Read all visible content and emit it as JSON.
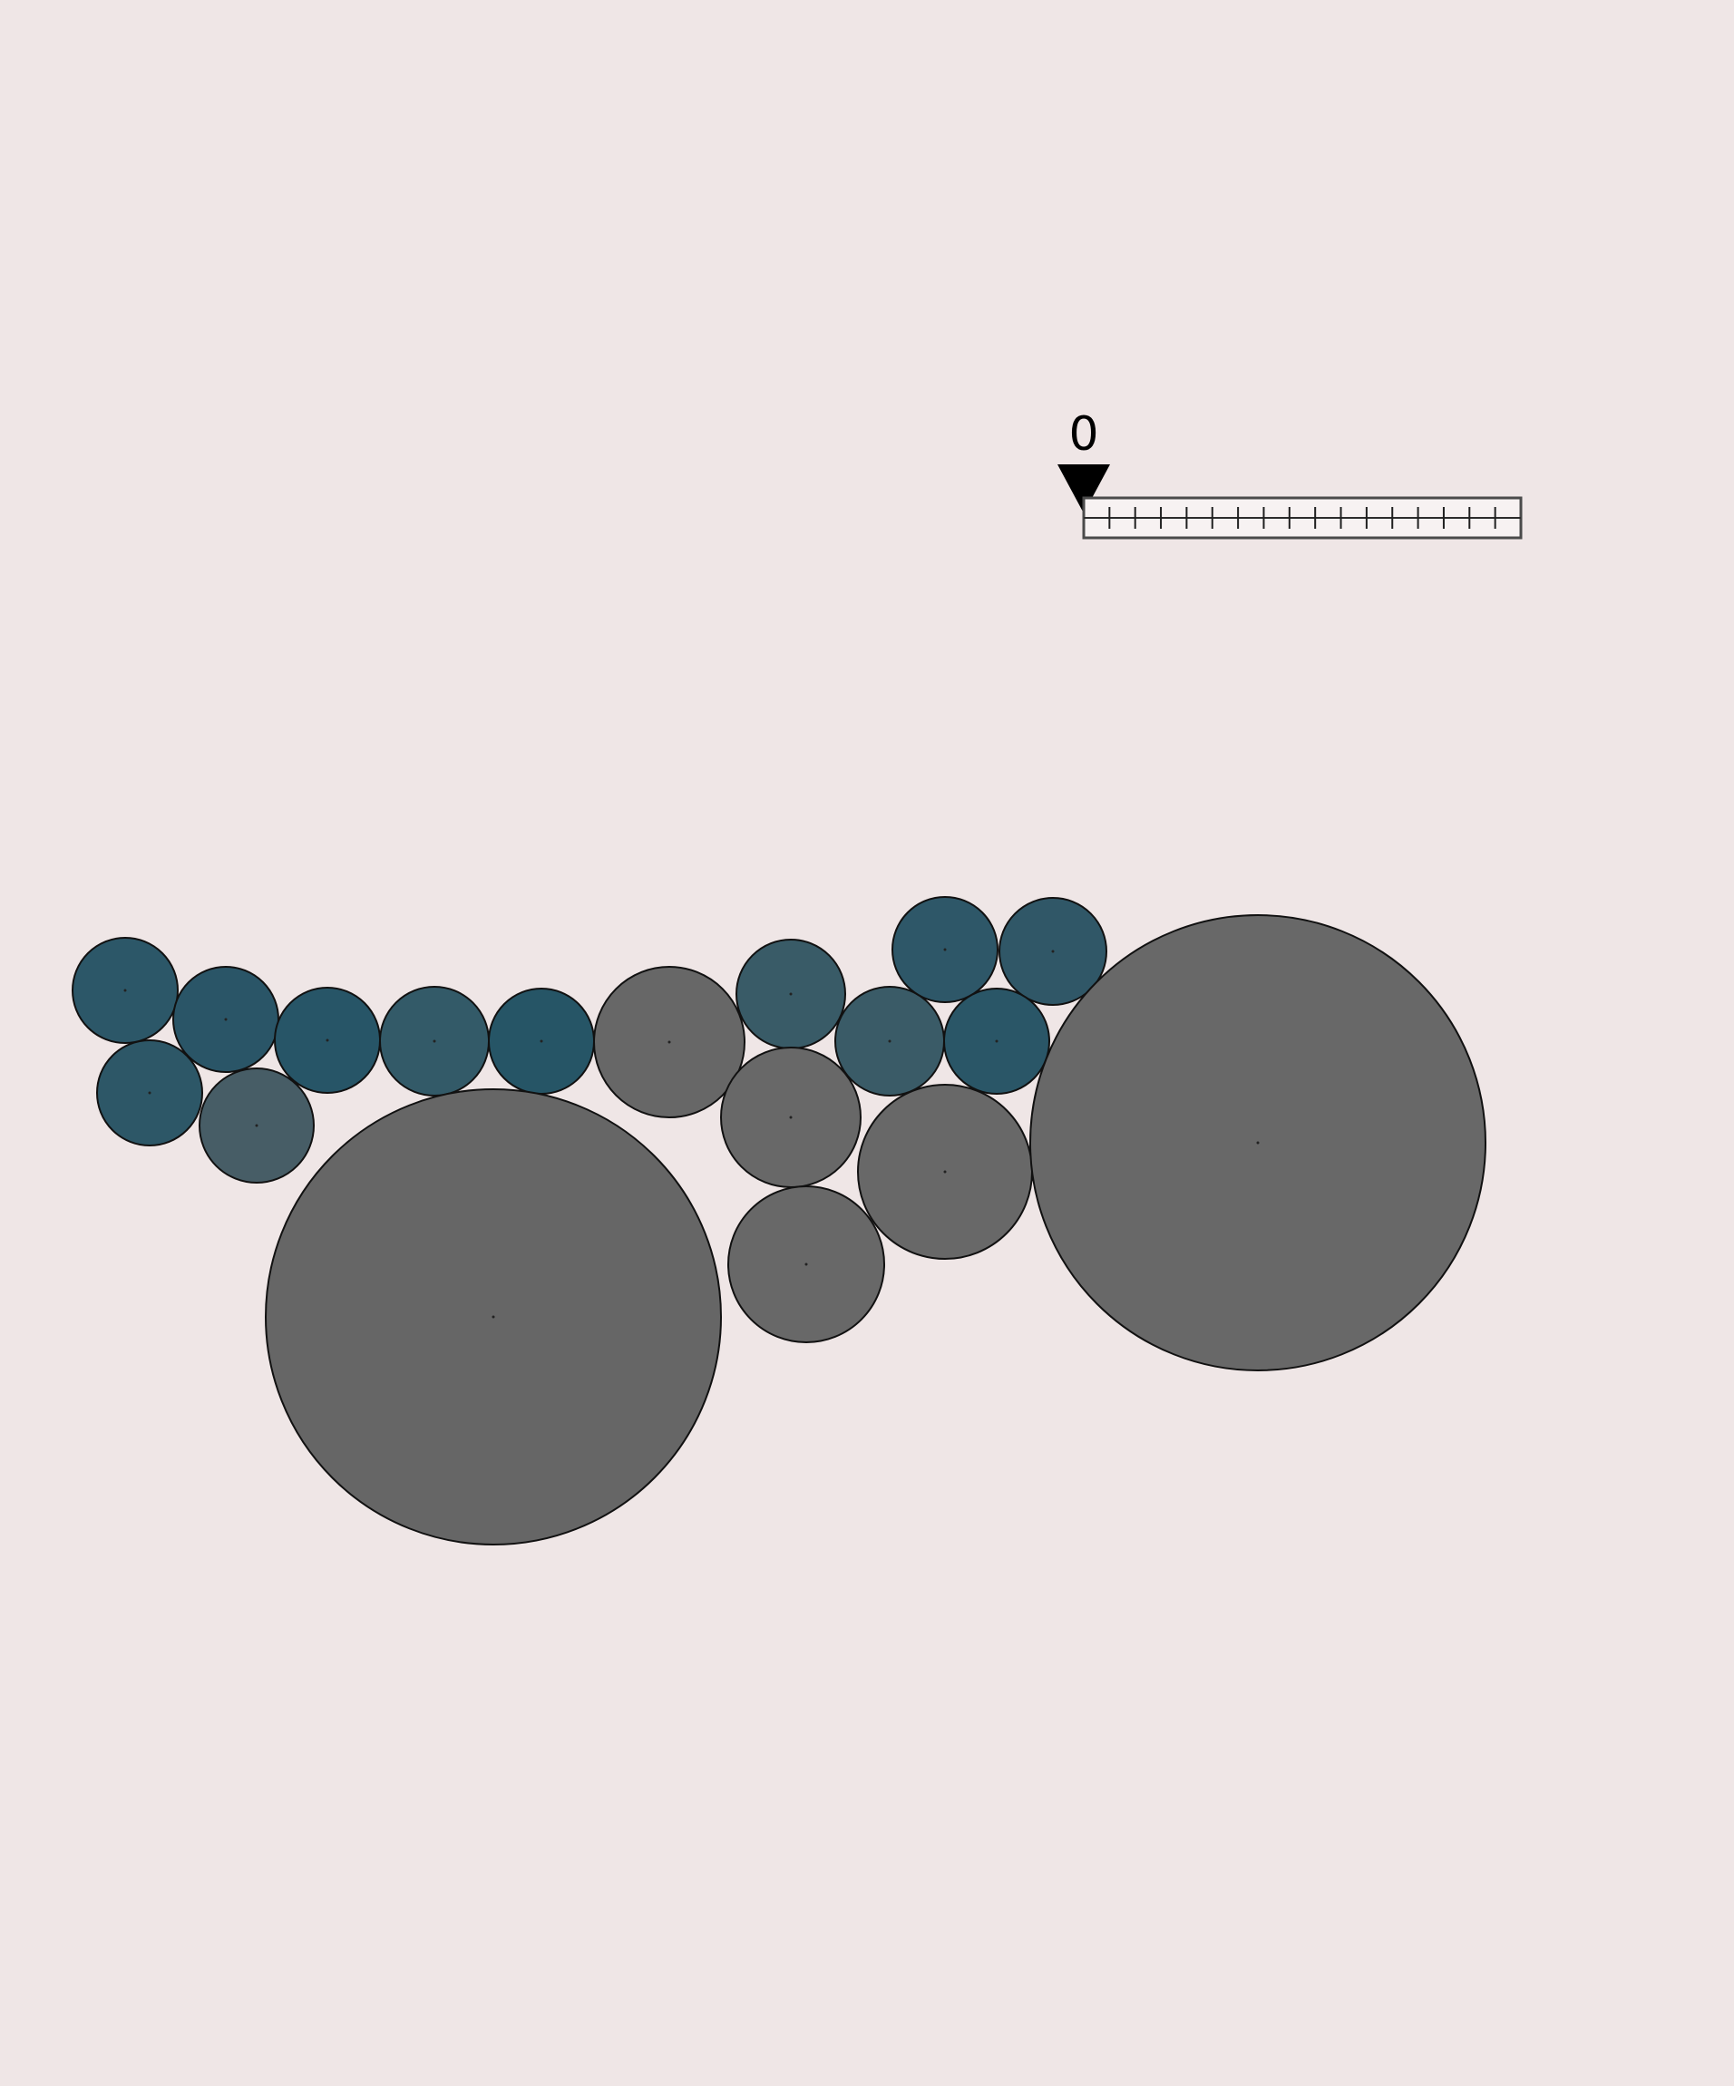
{
  "canvas": {
    "background": "#efe6e6"
  },
  "scale_indicator": {
    "value_label": "0",
    "marker_icon": "down-triangle-icon",
    "marker_color": "#000000",
    "tick_count": 17
  },
  "circle_style": {
    "stroke": "#111111",
    "center_dot": "#222222"
  },
  "circles": [
    {
      "id": "teal-1",
      "color": "#2c5768"
    },
    {
      "id": "teal-2",
      "color": "#2a5567"
    },
    {
      "id": "teal-3",
      "color": "#275567"
    },
    {
      "id": "teal-4",
      "color": "#335a68"
    },
    {
      "id": "teal-5",
      "color": "#265566"
    },
    {
      "id": "teal-6",
      "color": "#2d5767"
    },
    {
      "id": "slate-7",
      "color": "#475d66"
    },
    {
      "id": "gray-large-left",
      "color": "#666666"
    },
    {
      "id": "gray-8",
      "color": "#676767"
    },
    {
      "id": "teal-9",
      "color": "#395b67"
    },
    {
      "id": "gray-10",
      "color": "#686868"
    },
    {
      "id": "gray-11",
      "color": "#686868"
    },
    {
      "id": "teal-12",
      "color": "#3a5b67"
    },
    {
      "id": "teal-13",
      "color": "#2e5768"
    },
    {
      "id": "teal-14",
      "color": "#305767"
    },
    {
      "id": "teal-15",
      "color": "#2a5667"
    },
    {
      "id": "gray-16",
      "color": "#686868"
    },
    {
      "id": "gray-large-right",
      "color": "#686868"
    }
  ]
}
